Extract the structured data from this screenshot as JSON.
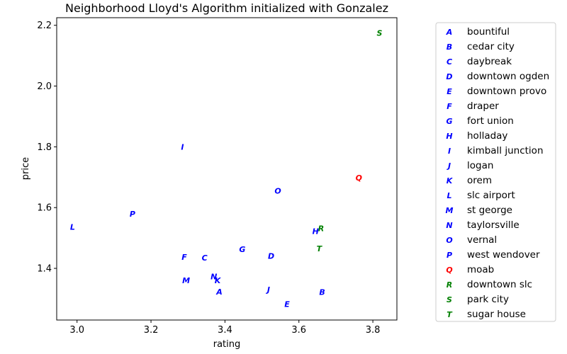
{
  "chart_data": {
    "type": "scatter",
    "title": "Neighborhood Lloyd's Algorithm initialized with Gonzalez",
    "xlabel": "rating",
    "ylabel": "price",
    "xlim": [
      2.945,
      3.865
    ],
    "ylim": [
      1.23,
      2.225
    ],
    "xticks": [
      {
        "value": 3.0,
        "label": "3.0"
      },
      {
        "value": 3.2,
        "label": "3.2"
      },
      {
        "value": 3.4,
        "label": "3.4"
      },
      {
        "value": 3.6,
        "label": "3.6"
      },
      {
        "value": 3.8,
        "label": "3.8"
      }
    ],
    "yticks": [
      {
        "value": 1.4,
        "label": "1.4"
      },
      {
        "value": 1.6,
        "label": "1.6"
      },
      {
        "value": 1.8,
        "label": "1.8"
      },
      {
        "value": 2.0,
        "label": "2.0"
      },
      {
        "value": 2.2,
        "label": "2.2"
      }
    ],
    "colors": {
      "blue": "#0000ff",
      "red": "#ff0000",
      "green": "#008000"
    },
    "legend_position": "right-outside",
    "points": [
      {
        "marker": "A",
        "label": "bountiful",
        "x": 3.385,
        "y": 1.323,
        "color": "#0000ff"
      },
      {
        "marker": "B",
        "label": "cedar city",
        "x": 3.663,
        "y": 1.322,
        "color": "#0000ff"
      },
      {
        "marker": "C",
        "label": "daybreak",
        "x": 3.345,
        "y": 1.435,
        "color": "#0000ff"
      },
      {
        "marker": "D",
        "label": "downtown ogden",
        "x": 3.525,
        "y": 1.441,
        "color": "#0000ff"
      },
      {
        "marker": "E",
        "label": "downtown provo",
        "x": 3.568,
        "y": 1.282,
        "color": "#0000ff"
      },
      {
        "marker": "F",
        "label": "draper",
        "x": 3.29,
        "y": 1.437,
        "color": "#0000ff"
      },
      {
        "marker": "G",
        "label": "fort union",
        "x": 3.447,
        "y": 1.463,
        "color": "#0000ff"
      },
      {
        "marker": "H",
        "label": "holladay",
        "x": 3.645,
        "y": 1.523,
        "color": "#0000ff"
      },
      {
        "marker": "I",
        "label": "kimball junction",
        "x": 3.285,
        "y": 1.8,
        "color": "#0000ff"
      },
      {
        "marker": "J",
        "label": "logan",
        "x": 3.518,
        "y": 1.33,
        "color": "#0000ff"
      },
      {
        "marker": "K",
        "label": "orem",
        "x": 3.38,
        "y": 1.36,
        "color": "#0000ff"
      },
      {
        "marker": "L",
        "label": "slc airport",
        "x": 2.988,
        "y": 1.536,
        "color": "#0000ff"
      },
      {
        "marker": "M",
        "label": "st george",
        "x": 3.295,
        "y": 1.36,
        "color": "#0000ff"
      },
      {
        "marker": "N",
        "label": "taylorsville",
        "x": 3.37,
        "y": 1.373,
        "color": "#0000ff"
      },
      {
        "marker": "O",
        "label": "vernal",
        "x": 3.543,
        "y": 1.655,
        "color": "#0000ff"
      },
      {
        "marker": "P",
        "label": "west wendover",
        "x": 3.15,
        "y": 1.58,
        "color": "#0000ff"
      },
      {
        "marker": "Q",
        "label": "moab",
        "x": 3.762,
        "y": 1.698,
        "color": "#ff0000"
      },
      {
        "marker": "R",
        "label": "downtown slc",
        "x": 3.66,
        "y": 1.532,
        "color": "#008000"
      },
      {
        "marker": "S",
        "label": "park city",
        "x": 3.818,
        "y": 2.175,
        "color": "#008000"
      },
      {
        "marker": "T",
        "label": "sugar house",
        "x": 3.655,
        "y": 1.465,
        "color": "#008000"
      }
    ]
  }
}
